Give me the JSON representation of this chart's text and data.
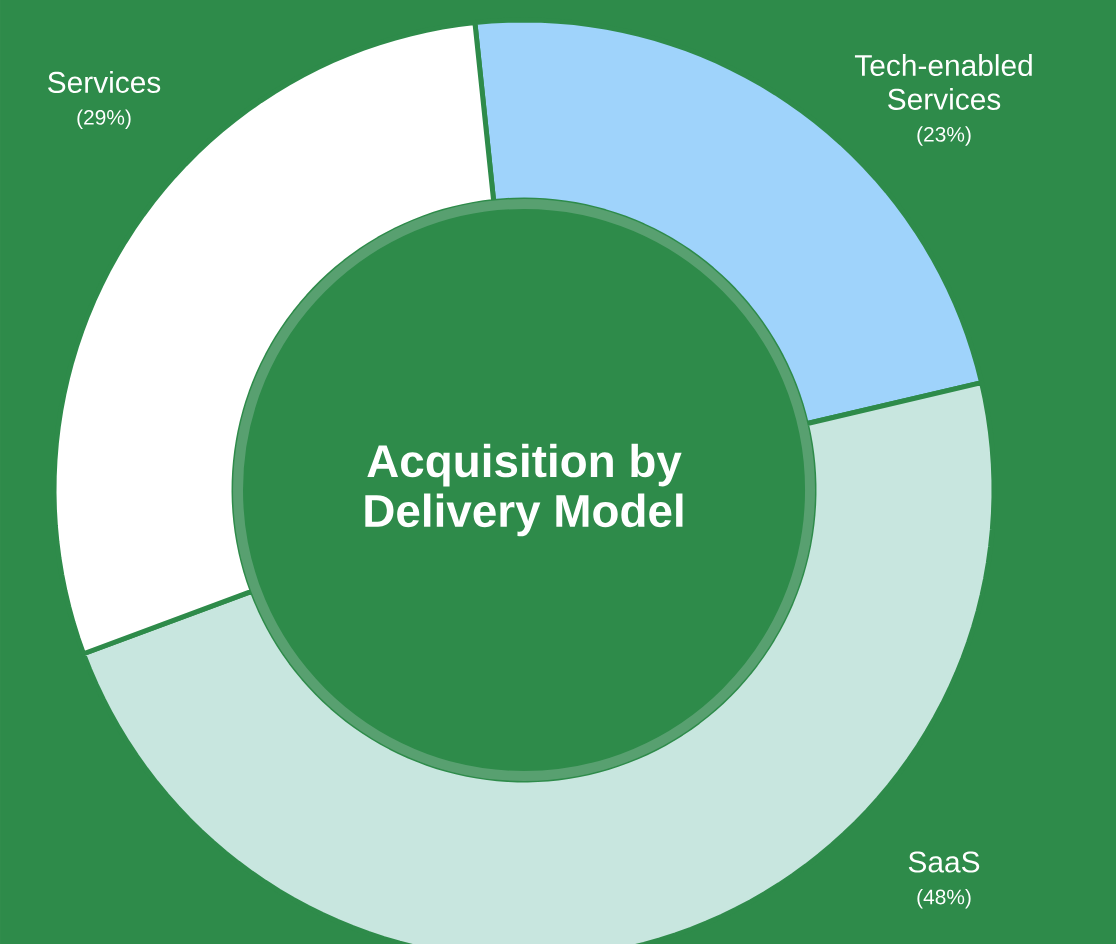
{
  "chart_data": {
    "type": "donut",
    "title": "Acquisition by Delivery Model",
    "categories": [
      "Tech-enabled Services",
      "SaaS",
      "Services"
    ],
    "values": [
      23,
      48,
      29
    ],
    "colors": [
      "#9fd3fb",
      "#c8e6df",
      "#ffffff"
    ],
    "value_labels": [
      "(23%)",
      "(48%)",
      "(29%)"
    ]
  }
}
